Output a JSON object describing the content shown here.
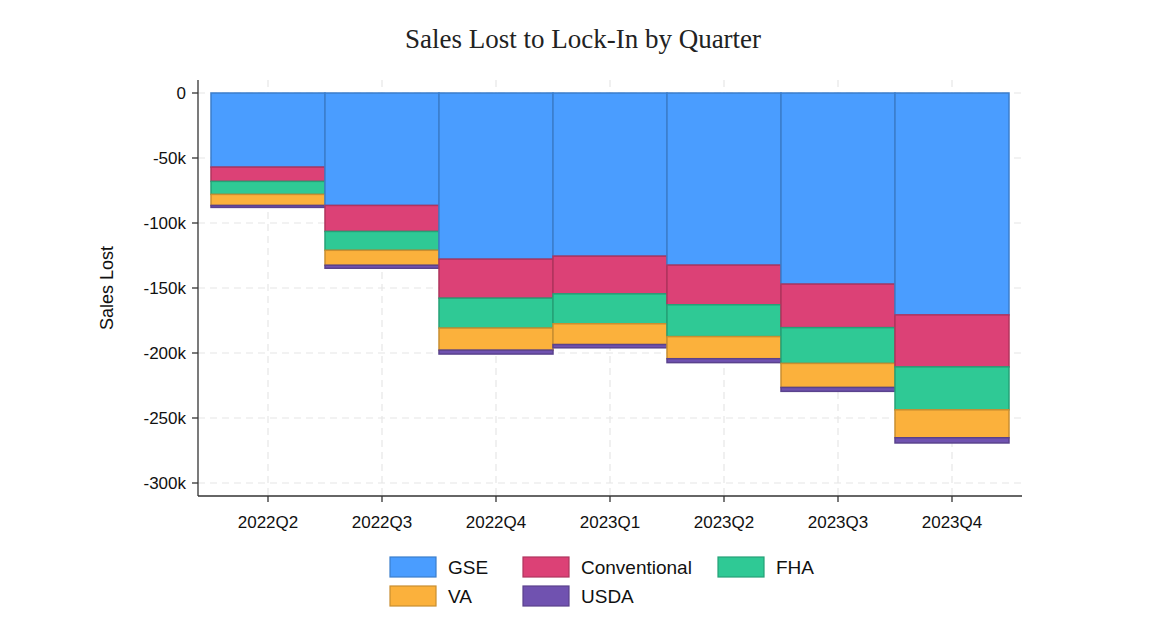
{
  "chart_data": {
    "type": "bar",
    "stacked": true,
    "title": "Sales Lost to Lock-In by Quarter",
    "y_label": "Sales Lost",
    "categories": [
      "2022Q2",
      "2022Q3",
      "2022Q4",
      "2023Q1",
      "2023Q2",
      "2023Q3",
      "2023Q4"
    ],
    "series": [
      {
        "name": "GSE",
        "color": "#4a9dff",
        "values": [
          -57000,
          -86500,
          -127800,
          -125500,
          -132400,
          -147000,
          -170700
        ]
      },
      {
        "name": "Conventional",
        "color": "#dc4176",
        "values": [
          -11000,
          -20000,
          -30000,
          -29000,
          -30500,
          -33500,
          -40000
        ]
      },
      {
        "name": "FHA",
        "color": "#2fc995",
        "values": [
          -10000,
          -14500,
          -23000,
          -23000,
          -24500,
          -27500,
          -33000
        ]
      },
      {
        "name": "VA",
        "color": "#fbb13c",
        "values": [
          -8500,
          -11500,
          -17000,
          -16000,
          -17000,
          -18500,
          -21500
        ]
      },
      {
        "name": "USDA",
        "color": "#7052b0",
        "values": [
          -1500,
          -2300,
          -3000,
          -2500,
          -3000,
          -3000,
          -4000
        ]
      }
    ],
    "ylim": [
      -310000,
      10000
    ],
    "yticks": [
      0,
      {
        "value": -50000,
        "label": "-50k"
      },
      {
        "value": -100000,
        "label": "-100k"
      },
      {
        "value": -150000,
        "label": "-150k"
      },
      {
        "value": -200000,
        "label": "-200k"
      },
      {
        "value": -250000,
        "label": "-250k"
      },
      {
        "value": -300000,
        "label": "-300k"
      }
    ],
    "grid": true,
    "legend": "bottom"
  }
}
